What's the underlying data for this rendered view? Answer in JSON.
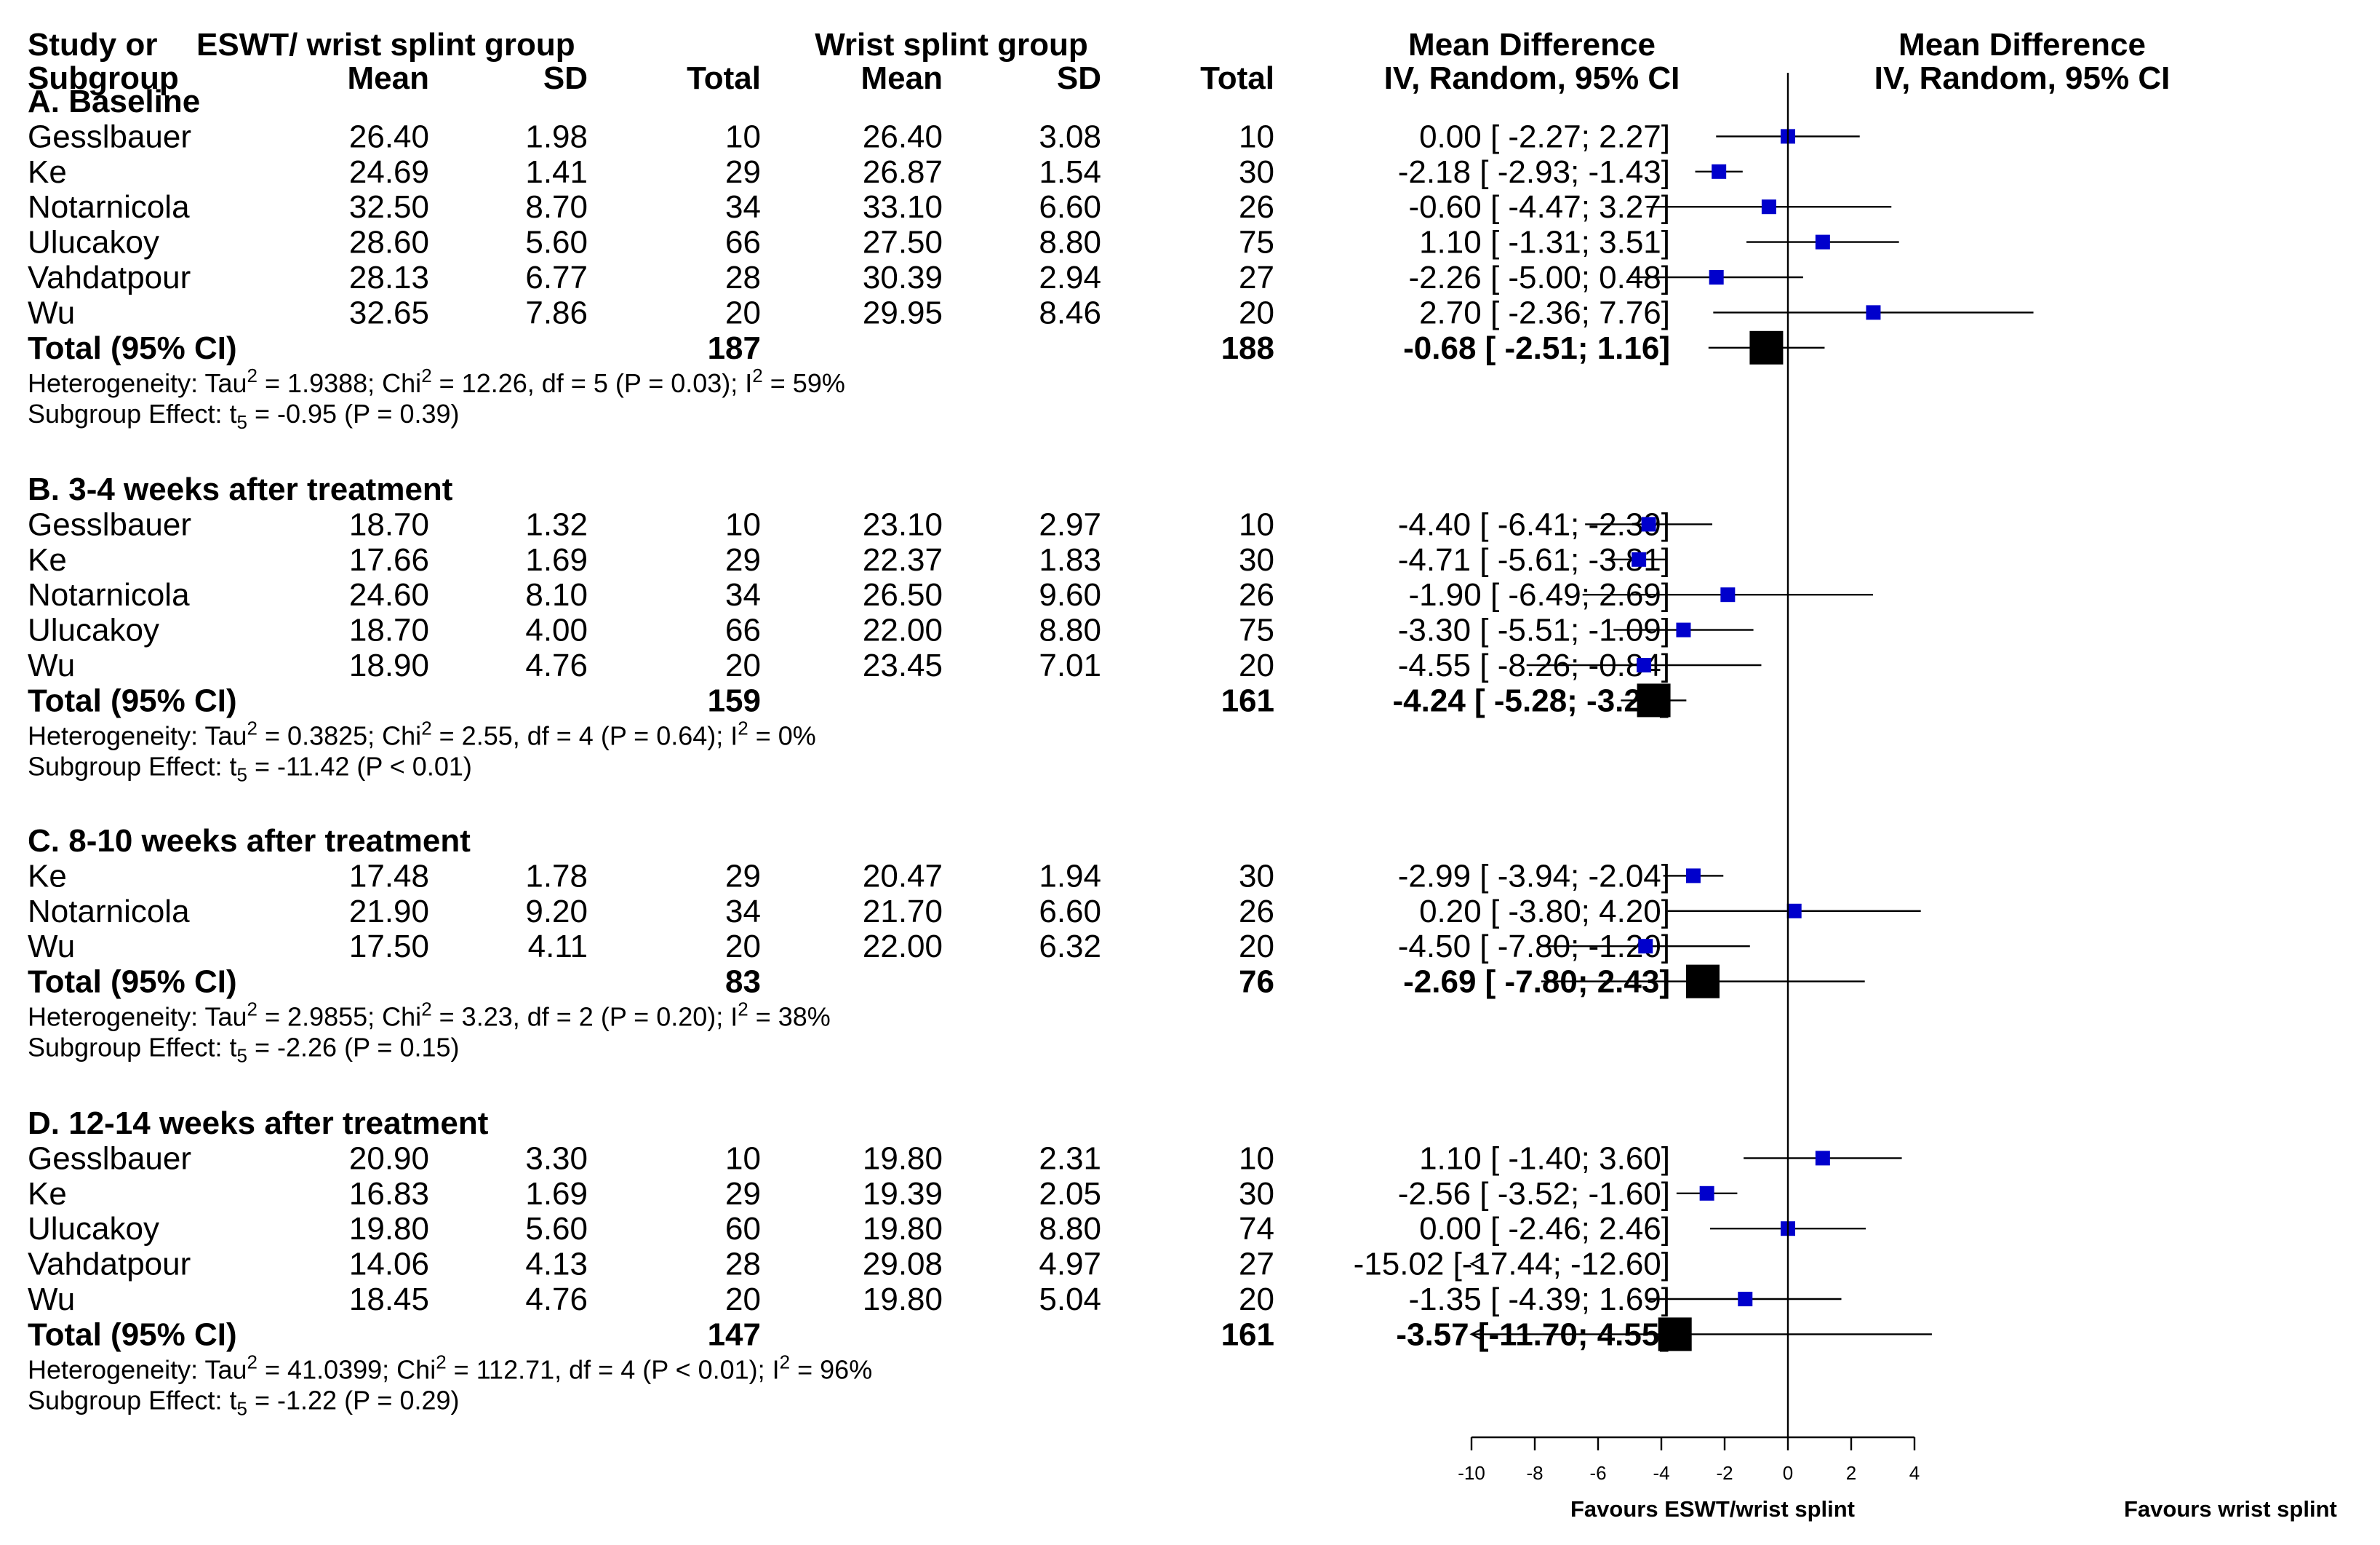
{
  "chart_data": {
    "type": "forest",
    "x_axis": {
      "min": -10,
      "max": 4,
      "ticks": [
        "-10",
        "-8",
        "-6",
        "-4",
        "-2",
        "0",
        "2",
        "4"
      ],
      "tick_values": [
        -10,
        -8,
        -6,
        -4,
        -2,
        0,
        2,
        4
      ],
      "left_label": "Favours ESWT/wrist splint",
      "right_label": "Favours wrist splint"
    },
    "headers": {
      "study_1": "Study or",
      "study_2": "Subgroup",
      "eswt_group": "ESWT/ wrist splint group",
      "splint_group": "Wrist splint group",
      "mean": "Mean",
      "sd": "SD",
      "total": "Total",
      "md_title": "Mean Difference",
      "md_method": "IV, Random, 95% CI",
      "plot_title": "Mean Difference",
      "plot_method": "IV, Random, 95% CI"
    },
    "subgroups": [
      {
        "title": "A. Baseline",
        "studies": [
          {
            "name": "Gesslbauer",
            "e_mean": "26.40",
            "e_sd": "1.98",
            "e_n": "10",
            "c_mean": "26.40",
            "c_sd": "3.08",
            "c_n": "10",
            "ci_text": "0.00 [ -2.27;   2.27]",
            "md": 0.0,
            "lo": -2.27,
            "hi": 2.27
          },
          {
            "name": "Ke",
            "e_mean": "24.69",
            "e_sd": "1.41",
            "e_n": "29",
            "c_mean": "26.87",
            "c_sd": "1.54",
            "c_n": "30",
            "ci_text": "-2.18 [ -2.93;  -1.43]",
            "md": -2.18,
            "lo": -2.93,
            "hi": -1.43
          },
          {
            "name": "Notarnicola",
            "e_mean": "32.50",
            "e_sd": "8.70",
            "e_n": "34",
            "c_mean": "33.10",
            "c_sd": "6.60",
            "c_n": "26",
            "ci_text": "-0.60 [ -4.47;   3.27]",
            "md": -0.6,
            "lo": -4.47,
            "hi": 3.27
          },
          {
            "name": "Ulucakoy",
            "e_mean": "28.60",
            "e_sd": "5.60",
            "e_n": "66",
            "c_mean": "27.50",
            "c_sd": "8.80",
            "c_n": "75",
            "ci_text": "1.10 [ -1.31;   3.51]",
            "md": 1.1,
            "lo": -1.31,
            "hi": 3.51
          },
          {
            "name": "Vahdatpour",
            "e_mean": "28.13",
            "e_sd": "6.77",
            "e_n": "28",
            "c_mean": "30.39",
            "c_sd": "2.94",
            "c_n": "27",
            "ci_text": "-2.26 [ -5.00;   0.48]",
            "md": -2.26,
            "lo": -5.0,
            "hi": 0.48
          },
          {
            "name": "Wu",
            "e_mean": "32.65",
            "e_sd": "7.86",
            "e_n": "20",
            "c_mean": "29.95",
            "c_sd": "8.46",
            "c_n": "20",
            "ci_text": "2.70 [ -2.36;   7.76]",
            "md": 2.7,
            "lo": -2.36,
            "hi": 7.76
          }
        ],
        "total": {
          "label": "Total (95% CI)",
          "e_n": "187",
          "c_n": "188",
          "ci_text": "-0.68 [ -2.51;   1.16]",
          "md": -0.68,
          "lo": -2.51,
          "hi": 1.16
        },
        "heterogeneity": {
          "tau_text": "Heterogeneity: Tau",
          "chi_text": " = 1.9388; Chi",
          "df_text": " = 12.26, df = 5 (P = 0.03); I",
          "i2_text": " = 59%"
        },
        "effect": {
          "text": "Subgroup Effect: t",
          "sub": "5",
          "rest": " = -0.95 (P = 0.39)"
        }
      },
      {
        "title": "B. 3-4 weeks after treatment",
        "studies": [
          {
            "name": "Gesslbauer",
            "e_mean": "18.70",
            "e_sd": "1.32",
            "e_n": "10",
            "c_mean": "23.10",
            "c_sd": "2.97",
            "c_n": "10",
            "ci_text": "-4.40 [ -6.41;  -2.39]",
            "md": -4.4,
            "lo": -6.41,
            "hi": -2.39
          },
          {
            "name": "Ke",
            "e_mean": "17.66",
            "e_sd": "1.69",
            "e_n": "29",
            "c_mean": "22.37",
            "c_sd": "1.83",
            "c_n": "30",
            "ci_text": "-4.71 [ -5.61;  -3.81]",
            "md": -4.71,
            "lo": -5.61,
            "hi": -3.81
          },
          {
            "name": "Notarnicola",
            "e_mean": "24.60",
            "e_sd": "8.10",
            "e_n": "34",
            "c_mean": "26.50",
            "c_sd": "9.60",
            "c_n": "26",
            "ci_text": "-1.90 [ -6.49;   2.69]",
            "md": -1.9,
            "lo": -6.49,
            "hi": 2.69
          },
          {
            "name": "Ulucakoy",
            "e_mean": "18.70",
            "e_sd": "4.00",
            "e_n": "66",
            "c_mean": "22.00",
            "c_sd": "8.80",
            "c_n": "75",
            "ci_text": "-3.30 [ -5.51;  -1.09]",
            "md": -3.3,
            "lo": -5.51,
            "hi": -1.09
          },
          {
            "name": "Wu",
            "e_mean": "18.90",
            "e_sd": "4.76",
            "e_n": "20",
            "c_mean": "23.45",
            "c_sd": "7.01",
            "c_n": "20",
            "ci_text": "-4.55 [ -8.26;  -0.84]",
            "md": -4.55,
            "lo": -8.26,
            "hi": -0.84
          }
        ],
        "total": {
          "label": "Total (95% CI)",
          "e_n": "159",
          "c_n": "161",
          "ci_text": "-4.24 [ -5.28;  -3.21]",
          "md": -4.24,
          "lo": -5.28,
          "hi": -3.21
        },
        "heterogeneity": {
          "tau_text": "Heterogeneity: Tau",
          "chi_text": " = 0.3825; Chi",
          "df_text": " = 2.55, df = 4 (P = 0.64); I",
          "i2_text": " = 0%"
        },
        "effect": {
          "text": "Subgroup Effect: t",
          "sub": "5",
          "rest": " = -11.42 (P < 0.01)"
        }
      },
      {
        "title": "C. 8-10 weeks after treatment",
        "studies": [
          {
            "name": "Ke",
            "e_mean": "17.48",
            "e_sd": "1.78",
            "e_n": "29",
            "c_mean": "20.47",
            "c_sd": "1.94",
            "c_n": "30",
            "ci_text": "-2.99 [ -3.94;  -2.04]",
            "md": -2.99,
            "lo": -3.94,
            "hi": -2.04
          },
          {
            "name": "Notarnicola",
            "e_mean": "21.90",
            "e_sd": "9.20",
            "e_n": "34",
            "c_mean": "21.70",
            "c_sd": "6.60",
            "c_n": "26",
            "ci_text": "0.20 [ -3.80;   4.20]",
            "md": 0.2,
            "lo": -3.8,
            "hi": 4.2
          },
          {
            "name": "Wu",
            "e_mean": "17.50",
            "e_sd": "4.11",
            "e_n": "20",
            "c_mean": "22.00",
            "c_sd": "6.32",
            "c_n": "20",
            "ci_text": "-4.50 [ -7.80;  -1.20]",
            "md": -4.5,
            "lo": -7.8,
            "hi": -1.2
          }
        ],
        "total": {
          "label": "Total (95% CI)",
          "e_n": "83",
          "c_n": "76",
          "ci_text": "-2.69 [ -7.80;   2.43]",
          "md": -2.69,
          "lo": -7.8,
          "hi": 2.43
        },
        "heterogeneity": {
          "tau_text": "Heterogeneity: Tau",
          "chi_text": " = 2.9855; Chi",
          "df_text": " = 3.23, df = 2 (P = 0.20); I",
          "i2_text": " = 38%"
        },
        "effect": {
          "text": "Subgroup Effect: t",
          "sub": "5",
          "rest": " = -2.26 (P = 0.15)"
        }
      },
      {
        "title": "D. 12-14 weeks after treatment",
        "studies": [
          {
            "name": "Gesslbauer",
            "e_mean": "20.90",
            "e_sd": "3.30",
            "e_n": "10",
            "c_mean": "19.80",
            "c_sd": "2.31",
            "c_n": "10",
            "ci_text": "1.10 [ -1.40;   3.60]",
            "md": 1.1,
            "lo": -1.4,
            "hi": 3.6
          },
          {
            "name": "Ke",
            "e_mean": "16.83",
            "e_sd": "1.69",
            "e_n": "29",
            "c_mean": "19.39",
            "c_sd": "2.05",
            "c_n": "30",
            "ci_text": "-2.56 [ -3.52;  -1.60]",
            "md": -2.56,
            "lo": -3.52,
            "hi": -1.6
          },
          {
            "name": "Ulucakoy",
            "e_mean": "19.80",
            "e_sd": "5.60",
            "e_n": "60",
            "c_mean": "19.80",
            "c_sd": "8.80",
            "c_n": "74",
            "ci_text": "0.00 [ -2.46;   2.46]",
            "md": 0.0,
            "lo": -2.46,
            "hi": 2.46
          },
          {
            "name": "Vahdatpour",
            "e_mean": "14.06",
            "e_sd": "4.13",
            "e_n": "28",
            "c_mean": "29.08",
            "c_sd": "4.97",
            "c_n": "27",
            "ci_text": "-15.02 [-17.44; -12.60]",
            "md": -15.02,
            "lo": -17.44,
            "hi": -12.6
          },
          {
            "name": "Wu",
            "e_mean": "18.45",
            "e_sd": "4.76",
            "e_n": "20",
            "c_mean": "19.80",
            "c_sd": "5.04",
            "c_n": "20",
            "ci_text": "-1.35 [ -4.39;   1.69]",
            "md": -1.35,
            "lo": -4.39,
            "hi": 1.69
          }
        ],
        "total": {
          "label": "Total (95% CI)",
          "e_n": "147",
          "c_n": "161",
          "ci_text": "-3.57 [-11.70;   4.55]",
          "md": -3.57,
          "lo": -11.7,
          "hi": 4.55
        },
        "heterogeneity": {
          "tau_text": "Heterogeneity: Tau",
          "chi_text": " = 41.0399; Chi",
          "df_text": " = 112.71, df = 4 (P < 0.01); I",
          "i2_text": " = 96%"
        },
        "effect": {
          "text": "Subgroup Effect: t",
          "sub": "5",
          "rest": " = -1.22 (P = 0.29)"
        }
      }
    ],
    "superscript": "2",
    "colors": {
      "study_marker": "#0000cc",
      "total_marker": "#000000",
      "line": "#000000"
    }
  }
}
